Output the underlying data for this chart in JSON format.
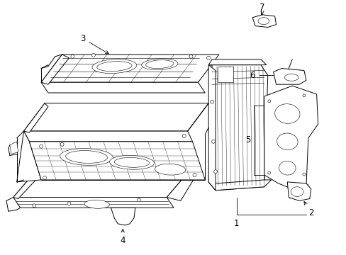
{
  "background_color": "#ffffff",
  "fig_width": 4.89,
  "fig_height": 3.6,
  "dpi": 100,
  "line_color": "#000000",
  "lw": 0.7,
  "tlw": 0.4,
  "label_fontsize": 8.5
}
